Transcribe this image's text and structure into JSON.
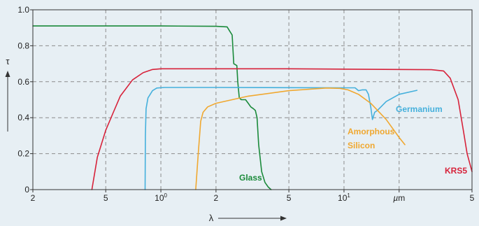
{
  "chart_data": {
    "type": "line",
    "xscale": "log",
    "xlim": [
      0.2,
      50
    ],
    "ylim": [
      0,
      1.0
    ],
    "grid": true,
    "xlabel": "λ",
    "ylabel": "τ",
    "x_unit": "µm",
    "x_ticks": [
      {
        "value": 0.2,
        "label": "2"
      },
      {
        "value": 0.5,
        "label": "5"
      },
      {
        "value": 1,
        "label": "10",
        "sup": "0"
      },
      {
        "value": 2,
        "label": "2"
      },
      {
        "value": 5,
        "label": "5"
      },
      {
        "value": 10,
        "label": "10",
        "sup": "1"
      },
      {
        "value": 20,
        "label": "µm"
      },
      {
        "value": 50,
        "label": "5"
      }
    ],
    "y_ticks": [
      {
        "value": 0,
        "label": "0"
      },
      {
        "value": 0.2,
        "label": "0.2"
      },
      {
        "value": 0.4,
        "label": "0.4"
      },
      {
        "value": 0.6,
        "label": "0.6"
      },
      {
        "value": 0.8,
        "label": "0.8"
      },
      {
        "value": 1.0,
        "label": "1.0"
      }
    ],
    "series": [
      {
        "name": "Glass",
        "color": "#1a8a3a",
        "points": [
          [
            0.2,
            0.91
          ],
          [
            1.0,
            0.91
          ],
          [
            2.0,
            0.908
          ],
          [
            2.3,
            0.905
          ],
          [
            2.38,
            0.88
          ],
          [
            2.45,
            0.86
          ],
          [
            2.5,
            0.7
          ],
          [
            2.6,
            0.69
          ],
          [
            2.63,
            0.6
          ],
          [
            2.68,
            0.51
          ],
          [
            2.75,
            0.5
          ],
          [
            2.9,
            0.5
          ],
          [
            3.0,
            0.48
          ],
          [
            3.1,
            0.46
          ],
          [
            3.2,
            0.45
          ],
          [
            3.28,
            0.44
          ],
          [
            3.35,
            0.4
          ],
          [
            3.42,
            0.25
          ],
          [
            3.55,
            0.1
          ],
          [
            3.7,
            0.04
          ],
          [
            3.85,
            0.015
          ],
          [
            4.0,
            0.0
          ]
        ]
      },
      {
        "name": "Germanium",
        "color": "#45b0dc",
        "points": [
          [
            0.82,
            0.0
          ],
          [
            0.823,
            0.3
          ],
          [
            0.83,
            0.45
          ],
          [
            0.85,
            0.51
          ],
          [
            0.9,
            0.55
          ],
          [
            0.95,
            0.565
          ],
          [
            1.05,
            0.568
          ],
          [
            2.0,
            0.568
          ],
          [
            5.0,
            0.567
          ],
          [
            10.0,
            0.566
          ],
          [
            11.5,
            0.566
          ],
          [
            12.0,
            0.55
          ],
          [
            12.6,
            0.555
          ],
          [
            13.2,
            0.555
          ],
          [
            13.6,
            0.53
          ],
          [
            14.0,
            0.46
          ],
          [
            14.3,
            0.39
          ],
          [
            14.7,
            0.43
          ],
          [
            15.2,
            0.44
          ],
          [
            17.0,
            0.49
          ],
          [
            20.0,
            0.53
          ],
          [
            25.0,
            0.552
          ]
        ]
      },
      {
        "name": "Amorphous Silicon",
        "color": "#f0a830",
        "points": [
          [
            1.55,
            0.0
          ],
          [
            1.6,
            0.2
          ],
          [
            1.65,
            0.38
          ],
          [
            1.7,
            0.43
          ],
          [
            1.8,
            0.46
          ],
          [
            2.0,
            0.48
          ],
          [
            3.0,
            0.52
          ],
          [
            5.0,
            0.55
          ],
          [
            8.0,
            0.565
          ],
          [
            9.5,
            0.563
          ],
          [
            10.5,
            0.555
          ],
          [
            12.0,
            0.53
          ],
          [
            14.0,
            0.48
          ],
          [
            17.0,
            0.39
          ],
          [
            20.0,
            0.29
          ],
          [
            21.5,
            0.25
          ]
        ]
      },
      {
        "name": "KRS5",
        "color": "#d7223a",
        "points": [
          [
            0.42,
            0.0
          ],
          [
            0.45,
            0.18
          ],
          [
            0.5,
            0.33
          ],
          [
            0.55,
            0.43
          ],
          [
            0.6,
            0.52
          ],
          [
            0.7,
            0.61
          ],
          [
            0.8,
            0.65
          ],
          [
            0.9,
            0.668
          ],
          [
            1.0,
            0.672
          ],
          [
            5.0,
            0.672
          ],
          [
            20.0,
            0.668
          ],
          [
            30.0,
            0.667
          ],
          [
            35.0,
            0.66
          ],
          [
            38.0,
            0.62
          ],
          [
            42.0,
            0.5
          ],
          [
            45.0,
            0.32
          ],
          [
            47.0,
            0.2
          ],
          [
            50.0,
            0.1
          ]
        ]
      }
    ]
  }
}
